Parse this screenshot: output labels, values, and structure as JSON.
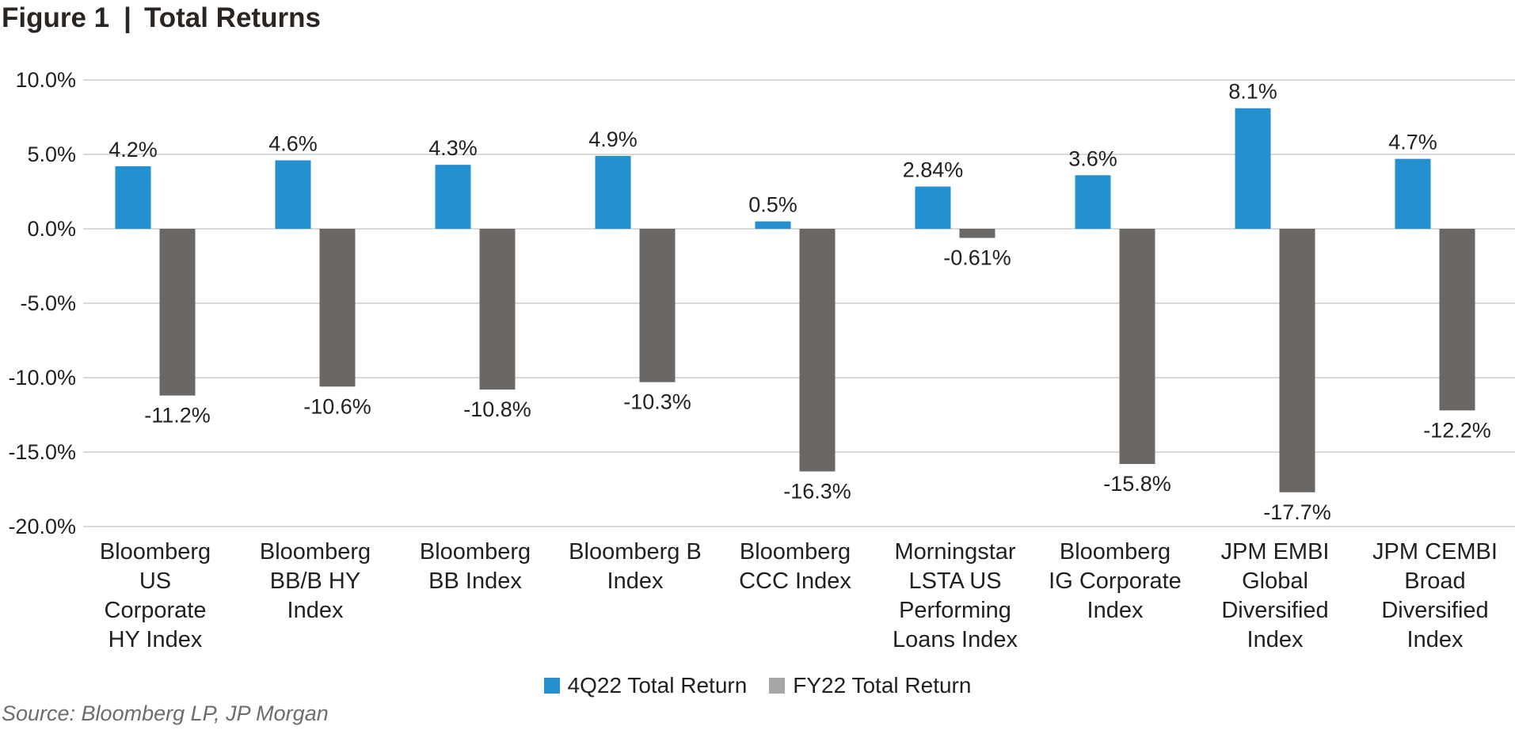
{
  "figure": {
    "label": "Figure 1",
    "separator": "|",
    "title": "Total Returns"
  },
  "chart_data": {
    "type": "bar",
    "categories": [
      [
        "Bloomberg",
        "US",
        "Corporate",
        "HY Index"
      ],
      [
        "Bloomberg",
        "BB/B HY",
        "Index"
      ],
      [
        "Bloomberg",
        "BB Index"
      ],
      [
        "Bloomberg B",
        "Index"
      ],
      [
        "Bloomberg",
        "CCC Index"
      ],
      [
        "Morningstar",
        "LSTA US",
        "Performing",
        "Loans Index"
      ],
      [
        "Bloomberg",
        "IG Corporate",
        "Index"
      ],
      [
        "JPM EMBI",
        "Global",
        "Diversified",
        "Index"
      ],
      [
        "JPM CEMBI",
        "Broad",
        "Diversified",
        "Index"
      ]
    ],
    "series": [
      {
        "name": "4Q22 Total Return",
        "color": "#2390d0",
        "values": [
          4.2,
          4.6,
          4.3,
          4.9,
          0.5,
          2.84,
          3.6,
          8.1,
          4.7
        ],
        "labels": [
          "4.2%",
          "4.6%",
          "4.3%",
          "4.9%",
          "0.5%",
          "2.84%",
          "3.6%",
          "8.1%",
          "4.7%"
        ]
      },
      {
        "name": "FY22 Total Return",
        "color": "#6b6765",
        "values": [
          -11.2,
          -10.6,
          -10.8,
          -10.3,
          -16.3,
          -0.61,
          -15.8,
          -17.7,
          -12.2
        ],
        "labels": [
          "-11.2%",
          "-10.6%",
          "-10.8%",
          "-10.3%",
          "-16.3%",
          "-0.61%",
          "-15.8%",
          "-17.7%",
          "-12.2%"
        ]
      }
    ],
    "ylim": [
      -20,
      10
    ],
    "yticks": [
      10,
      5,
      0,
      -5,
      -10,
      -15,
      -20
    ],
    "ytick_labels": [
      "10.0%",
      "5.0%",
      "0.0%",
      "-5.0%",
      "-10.0%",
      "-15.0%",
      "-20.0%"
    ],
    "grid": true,
    "legend_position": "bottom-center",
    "legend_swatch_colors": [
      "#2390d0",
      "#a6a6a6"
    ]
  },
  "source": "Source: Bloomberg LP, JP Morgan"
}
